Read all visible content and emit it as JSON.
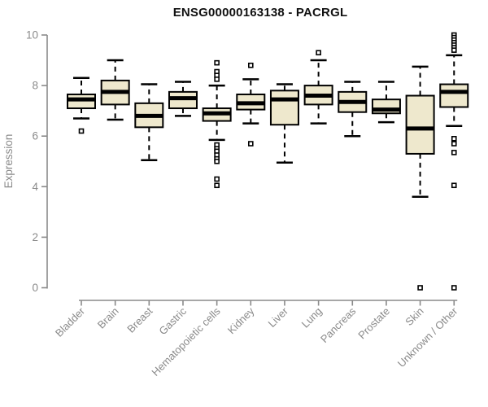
{
  "chart_data": {
    "type": "boxplot",
    "title": "ENSG00000163138 - PACRGL",
    "xlabel": "",
    "ylabel": "Expression",
    "ylim": [
      0,
      10
    ],
    "yticks": [
      0,
      2,
      4,
      6,
      8,
      10
    ],
    "grid": false,
    "legend": "none",
    "categories": [
      "Bladder",
      "Brain",
      "Breast",
      "Gastric",
      "Hematopoietic cells",
      "Kidney",
      "Liver",
      "Lung",
      "Pancreas",
      "Prostate",
      "Skin",
      "Unknown / Other"
    ],
    "boxes": [
      {
        "label": "Bladder",
        "whisker_low": 6.7,
        "q1": 7.1,
        "median": 7.45,
        "q3": 7.65,
        "whisker_high": 8.3,
        "outliers": [
          6.2
        ]
      },
      {
        "label": "Brain",
        "whisker_low": 6.65,
        "q1": 7.25,
        "median": 7.75,
        "q3": 8.2,
        "whisker_high": 9.0,
        "outliers": []
      },
      {
        "label": "Breast",
        "whisker_low": 5.05,
        "q1": 6.35,
        "median": 6.8,
        "q3": 7.3,
        "whisker_high": 8.05,
        "outliers": []
      },
      {
        "label": "Gastric",
        "whisker_low": 6.8,
        "q1": 7.1,
        "median": 7.5,
        "q3": 7.75,
        "whisker_high": 8.15,
        "outliers": []
      },
      {
        "label": "Hematopoietic cells",
        "whisker_low": 5.85,
        "q1": 6.6,
        "median": 6.9,
        "q3": 7.1,
        "whisker_high": 8.0,
        "outliers": [
          8.9,
          8.55,
          8.4,
          8.25,
          5.65,
          5.5,
          5.4,
          5.25,
          5.1,
          5.0,
          4.3,
          4.05
        ]
      },
      {
        "label": "Kidney",
        "whisker_low": 6.5,
        "q1": 7.05,
        "median": 7.3,
        "q3": 7.65,
        "whisker_high": 8.25,
        "outliers": [
          8.8,
          5.7
        ]
      },
      {
        "label": "Liver",
        "whisker_low": 4.95,
        "q1": 6.45,
        "median": 7.45,
        "q3": 7.8,
        "whisker_high": 8.05,
        "outliers": []
      },
      {
        "label": "Lung",
        "whisker_low": 6.5,
        "q1": 7.25,
        "median": 7.6,
        "q3": 8.0,
        "whisker_high": 9.0,
        "outliers": [
          9.3
        ]
      },
      {
        "label": "Pancreas",
        "whisker_low": 6.0,
        "q1": 6.95,
        "median": 7.35,
        "q3": 7.75,
        "whisker_high": 8.15,
        "outliers": []
      },
      {
        "label": "Prostate",
        "whisker_low": 6.55,
        "q1": 6.9,
        "median": 7.05,
        "q3": 7.45,
        "whisker_high": 8.15,
        "outliers": []
      },
      {
        "label": "Skin",
        "whisker_low": 3.6,
        "q1": 5.3,
        "median": 6.3,
        "q3": 7.6,
        "whisker_high": 8.75,
        "outliers": [
          0.0
        ]
      },
      {
        "label": "Unknown / Other",
        "whisker_low": 6.4,
        "q1": 7.15,
        "median": 7.75,
        "q3": 8.05,
        "whisker_high": 9.2,
        "outliers": [
          10.0,
          9.9,
          9.8,
          9.7,
          9.6,
          9.5,
          9.4,
          5.9,
          5.7,
          5.35,
          4.05,
          0.0
        ]
      }
    ],
    "colors": {
      "box_fill": "#EEE8CD",
      "box_border": "#000000",
      "median": "#000000",
      "whisker": "#000000",
      "outlier_stroke": "#000000",
      "outlier_fill": "#FFFFFF",
      "axis": "#8A8A8A",
      "tick_label": "#8A8A8A",
      "title": "#111111",
      "background": "#FFFFFF"
    }
  }
}
